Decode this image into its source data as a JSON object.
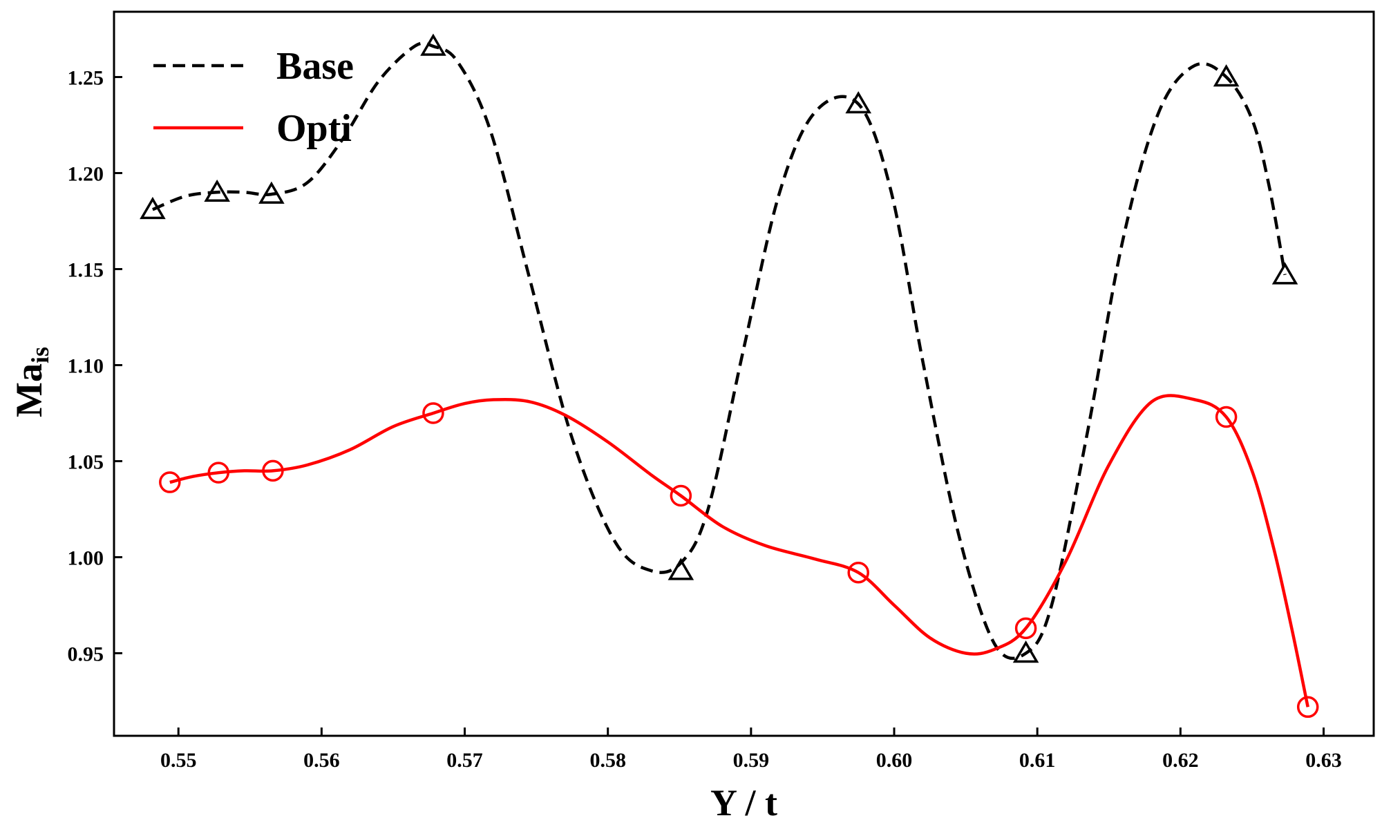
{
  "chart_data": {
    "type": "line",
    "xlabel": "Y / t",
    "ylabel_main": "Ma",
    "ylabel_sub": "is",
    "xlim": [
      0.5455,
      0.6335
    ],
    "ylim": [
      0.907,
      1.284
    ],
    "x_ticks": [
      0.55,
      0.56,
      0.57,
      0.58,
      0.59,
      0.6,
      0.61,
      0.62,
      0.63
    ],
    "x_tick_labels": [
      "0.55",
      "0.56",
      "0.57",
      "0.58",
      "0.59",
      "0.60",
      "0.61",
      "0.62",
      "0.63"
    ],
    "y_ticks": [
      0.95,
      1.0,
      1.05,
      1.1,
      1.15,
      1.2,
      1.25
    ],
    "y_tick_labels": [
      "0.95",
      "1.00",
      "1.05",
      "1.10",
      "1.15",
      "1.20",
      "1.25"
    ],
    "grid": false,
    "legend_position": "top-left",
    "series": [
      {
        "name": "Base",
        "color": "#000000",
        "line_style": "dashed",
        "marker": "triangle",
        "x": [
          0.5482,
          0.5527,
          0.5565,
          0.5678,
          0.5851,
          0.5975,
          0.6092,
          0.6232,
          0.6273
        ],
        "y": [
          1.181,
          1.19,
          1.189,
          1.266,
          0.993,
          1.236,
          0.95,
          1.25,
          1.147
        ],
        "curve_x": [
          0.5482,
          0.5505,
          0.5527,
          0.5546,
          0.5565,
          0.559,
          0.5615,
          0.564,
          0.5665,
          0.5678,
          0.5695,
          0.5718,
          0.5745,
          0.5775,
          0.5805,
          0.583,
          0.5851,
          0.587,
          0.5895,
          0.592,
          0.5945,
          0.5975,
          0.5998,
          0.602,
          0.6045,
          0.607,
          0.6092,
          0.611,
          0.6135,
          0.616,
          0.6185,
          0.621,
          0.6232,
          0.625,
          0.6262,
          0.6273
        ],
        "curve_y": [
          1.181,
          1.188,
          1.19,
          1.19,
          1.189,
          1.195,
          1.218,
          1.248,
          1.266,
          1.266,
          1.258,
          1.222,
          1.146,
          1.062,
          1.008,
          0.993,
          0.997,
          1.025,
          1.109,
          1.19,
          1.232,
          1.236,
          1.19,
          1.102,
          1.012,
          0.955,
          0.95,
          0.975,
          1.065,
          1.166,
          1.232,
          1.256,
          1.25,
          1.228,
          1.193,
          1.147
        ]
      },
      {
        "name": "Opti",
        "color": "#ff0000",
        "line_style": "solid",
        "marker": "circle",
        "x": [
          0.5494,
          0.5528,
          0.5566,
          0.5678,
          0.5851,
          0.5975,
          0.6092,
          0.6232,
          0.6289
        ],
        "y": [
          1.039,
          1.044,
          1.045,
          1.075,
          1.032,
          0.992,
          0.963,
          1.073,
          0.922
        ],
        "curve_x": [
          0.5494,
          0.551,
          0.5528,
          0.5546,
          0.5566,
          0.559,
          0.562,
          0.565,
          0.5678,
          0.57,
          0.572,
          0.5745,
          0.577,
          0.58,
          0.583,
          0.5851,
          0.588,
          0.591,
          0.5945,
          0.5975,
          0.6,
          0.6025,
          0.605,
          0.607,
          0.6092,
          0.612,
          0.615,
          0.618,
          0.621,
          0.6232,
          0.625,
          0.6265,
          0.6278,
          0.6289
        ],
        "curve_y": [
          1.039,
          1.042,
          1.044,
          1.045,
          1.045,
          1.048,
          1.056,
          1.068,
          1.075,
          1.08,
          1.082,
          1.081,
          1.074,
          1.06,
          1.043,
          1.032,
          1.016,
          1.006,
          0.999,
          0.992,
          0.975,
          0.958,
          0.95,
          0.952,
          0.963,
          0.998,
          1.048,
          1.081,
          1.082,
          1.073,
          1.045,
          1.005,
          0.962,
          0.922
        ]
      }
    ]
  }
}
